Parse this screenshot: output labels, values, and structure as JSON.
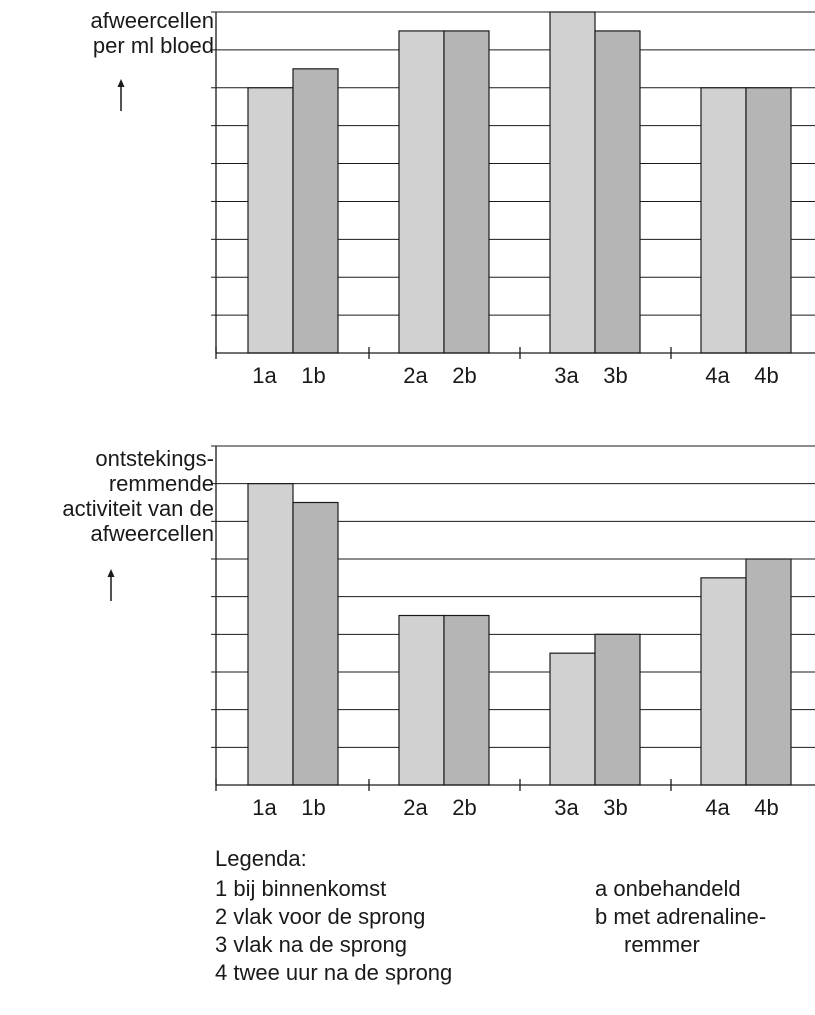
{
  "chart_data": [
    {
      "type": "bar",
      "ylabel_lines": [
        "afweercellen",
        "per ml bloed"
      ],
      "categories": [
        "1a",
        "1b",
        "2a",
        "2b",
        "3a",
        "3b",
        "4a",
        "4b"
      ],
      "series": [
        {
          "values": [
            7,
            7.5,
            8.5,
            8.5,
            9,
            8.5,
            7,
            7
          ]
        }
      ],
      "ylim": [
        0,
        9
      ],
      "grid": true,
      "colors": {
        "a": "#d1d1d1",
        "b": "#b5b5b5"
      }
    },
    {
      "type": "bar",
      "ylabel_lines": [
        "ontstekings-",
        "remmende",
        "activiteit van de",
        "afweercellen"
      ],
      "categories": [
        "1a",
        "1b",
        "2a",
        "2b",
        "3a",
        "3b",
        "4a",
        "4b"
      ],
      "series": [
        {
          "values": [
            8,
            7.5,
            4.5,
            4.5,
            3.5,
            4,
            5.5,
            6
          ]
        }
      ],
      "ylim": [
        0,
        9
      ],
      "grid": true,
      "colors": {
        "a": "#d1d1d1",
        "b": "#b5b5b5"
      }
    }
  ],
  "legend": {
    "title": "Legenda:",
    "numbers": [
      "1 bij binnenkomst",
      "2 vlak voor de sprong",
      "3 vlak na de sprong",
      "4 twee uur na de sprong"
    ],
    "letters": [
      "a onbehandeld",
      "b met adrenaline-",
      "remmer"
    ]
  },
  "arrow_icon": "up-arrow-icon"
}
